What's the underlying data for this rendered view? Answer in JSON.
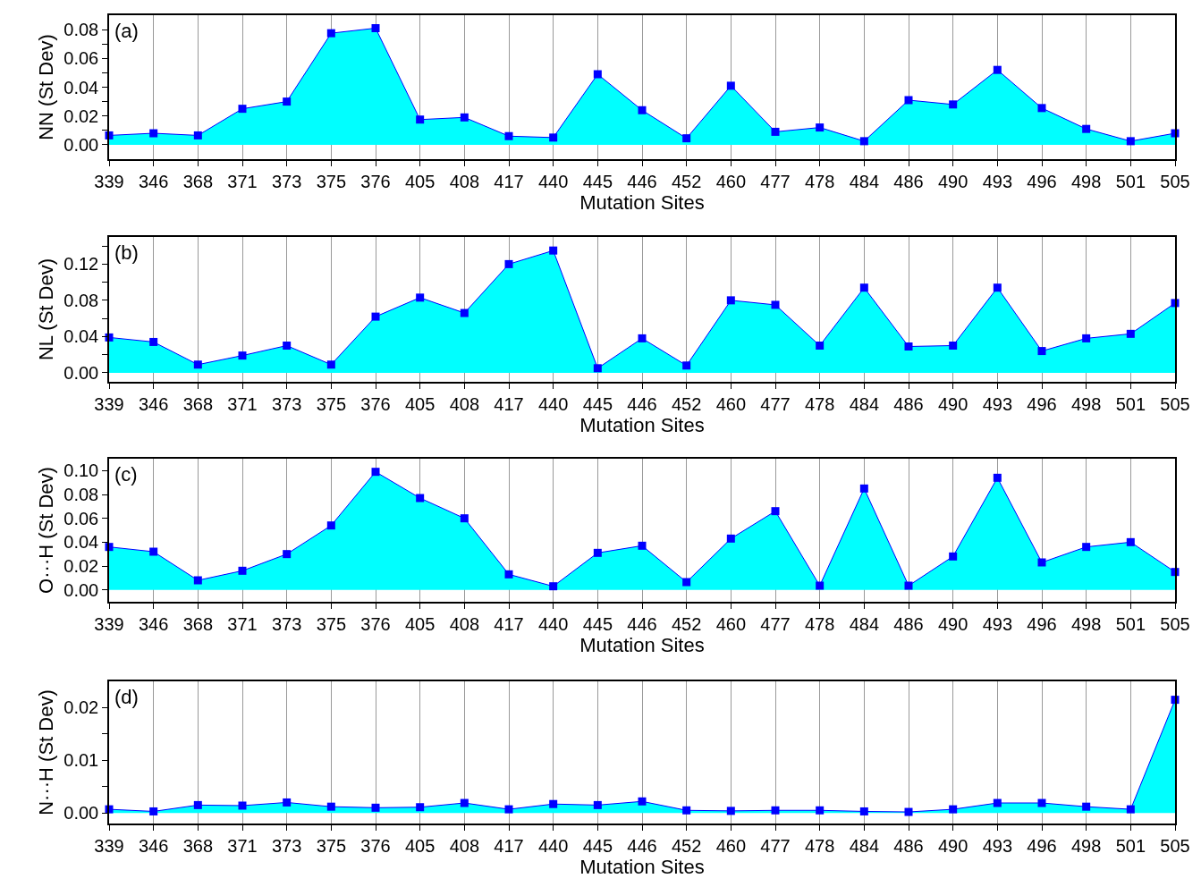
{
  "chart_data": [
    {
      "type": "area",
      "categories": [
        "339",
        "346",
        "368",
        "371",
        "373",
        "375",
        "376",
        "405",
        "408",
        "417",
        "440",
        "445",
        "446",
        "452",
        "460",
        "477",
        "478",
        "484",
        "486",
        "490",
        "493",
        "496",
        "498",
        "501",
        "505"
      ],
      "xlabel": "Mutation Sites",
      "ylabel": "NN (St Dev)",
      "annotations": [
        "(a)"
      ],
      "grid": "x",
      "marker": "square",
      "series": [
        {
          "color": "#0000ff",
          "values": [
            0.0065,
            0.008,
            0.0065,
            0.025,
            0.03,
            0.0775,
            0.081,
            0.0175,
            0.019,
            0.006,
            0.005,
            0.049,
            0.024,
            0.0045,
            0.041,
            0.009,
            0.012,
            0.0025,
            0.031,
            0.028,
            0.052,
            0.0255,
            0.011,
            0.0025,
            0.008
          ]
        }
      ],
      "ylim": [
        -0.01,
        0.09
      ],
      "yticks": [
        {
          "value": 0.0,
          "label": "0.00"
        },
        {
          "value": 0.01,
          "label": null
        },
        {
          "value": 0.02,
          "label": "0.02"
        },
        {
          "value": 0.03,
          "label": null
        },
        {
          "value": 0.04,
          "label": "0.04"
        },
        {
          "value": 0.05,
          "label": null
        },
        {
          "value": 0.06,
          "label": "0.06"
        },
        {
          "value": 0.07,
          "label": null
        },
        {
          "value": 0.08,
          "label": "0.08"
        }
      ]
    },
    {
      "type": "area",
      "categories": [
        "339",
        "346",
        "368",
        "371",
        "373",
        "375",
        "376",
        "405",
        "408",
        "417",
        "440",
        "445",
        "446",
        "452",
        "460",
        "477",
        "478",
        "484",
        "486",
        "490",
        "493",
        "496",
        "498",
        "501",
        "505"
      ],
      "xlabel": "Mutation Sites",
      "ylabel": "NL (St Dev)",
      "annotations": [
        "(b)"
      ],
      "grid": "x",
      "marker": "square",
      "series": [
        {
          "color": "#0000ff",
          "values": [
            0.039,
            0.034,
            0.009,
            0.019,
            0.03,
            0.009,
            0.062,
            0.083,
            0.066,
            0.12,
            0.135,
            0.005,
            0.038,
            0.008,
            0.08,
            0.075,
            0.03,
            0.094,
            0.029,
            0.03,
            0.094,
            0.024,
            0.038,
            0.043,
            0.077
          ]
        }
      ],
      "ylim": [
        -0.01,
        0.15
      ],
      "yticks": [
        {
          "value": 0.0,
          "label": "0.00"
        },
        {
          "value": 0.02,
          "label": null
        },
        {
          "value": 0.04,
          "label": "0.04"
        },
        {
          "value": 0.06,
          "label": null
        },
        {
          "value": 0.08,
          "label": "0.08"
        },
        {
          "value": 0.1,
          "label": null
        },
        {
          "value": 0.12,
          "label": "0.12"
        },
        {
          "value": 0.14,
          "label": null
        }
      ]
    },
    {
      "type": "area",
      "categories": [
        "339",
        "346",
        "368",
        "371",
        "373",
        "375",
        "376",
        "405",
        "408",
        "417",
        "440",
        "445",
        "446",
        "452",
        "460",
        "477",
        "478",
        "484",
        "486",
        "490",
        "493",
        "496",
        "498",
        "501",
        "505"
      ],
      "xlabel": "Mutation Sites",
      "ylabel": "O···H (St Dev)",
      "annotations": [
        "(c)"
      ],
      "grid": "x",
      "marker": "square",
      "series": [
        {
          "color": "#0000ff",
          "values": [
            0.036,
            0.032,
            0.008,
            0.016,
            0.03,
            0.054,
            0.099,
            0.077,
            0.06,
            0.013,
            0.003,
            0.031,
            0.037,
            0.0065,
            0.043,
            0.066,
            0.0035,
            0.085,
            0.0035,
            0.028,
            0.094,
            0.023,
            0.036,
            0.04,
            0.015
          ]
        }
      ],
      "ylim": [
        -0.01,
        0.11
      ],
      "yticks": [
        {
          "value": 0.0,
          "label": "0.00"
        },
        0.02,
        0.04,
        0.06,
        0.08,
        {
          "value": 0.1,
          "label": "0.10"
        }
      ]
    },
    {
      "type": "area",
      "categories": [
        "339",
        "346",
        "368",
        "371",
        "373",
        "375",
        "376",
        "405",
        "408",
        "417",
        "440",
        "445",
        "446",
        "452",
        "460",
        "477",
        "478",
        "484",
        "486",
        "490",
        "493",
        "496",
        "498",
        "501",
        "505"
      ],
      "xlabel": "Mutation Sites",
      "ylabel": "N···H (St Dev)",
      "annotations": [
        "(d)"
      ],
      "grid": "x",
      "marker": "square",
      "series": [
        {
          "color": "#0000ff",
          "values": [
            0.0007,
            0.0003,
            0.0015,
            0.0014,
            0.002,
            0.0012,
            0.001,
            0.0011,
            0.0019,
            0.0007,
            0.0017,
            0.0015,
            0.0022,
            0.0005,
            0.0004,
            0.0005,
            0.0005,
            0.0003,
            0.0002,
            0.0007,
            0.0019,
            0.0019,
            0.0012,
            0.0007,
            0.0215
          ]
        }
      ],
      "ylim": [
        -0.002,
        0.025
      ],
      "yticks": [
        {
          "value": 0.0,
          "label": "0.00"
        },
        {
          "value": 0.005,
          "label": null
        },
        0.01,
        {
          "value": 0.015,
          "label": null
        },
        0.02
      ]
    }
  ]
}
